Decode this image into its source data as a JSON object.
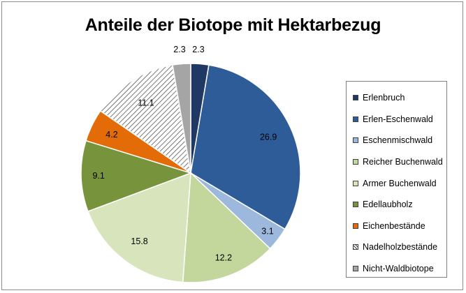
{
  "chart_data": {
    "type": "pie",
    "title": "Anteile der Biotope mit Hektarbezug",
    "legend_position": "right",
    "slices": [
      {
        "name": "Erlenbruch",
        "value": 2.3,
        "label": "2.3",
        "color": "#1f3864",
        "pattern": "solid"
      },
      {
        "name": "Erlen-Eschenwald",
        "value": 26.9,
        "label": "26.9",
        "color": "#2e5c99",
        "pattern": "solid"
      },
      {
        "name": "Eschenmischwald",
        "value": 3.1,
        "label": "3.1",
        "color": "#9db8dd",
        "pattern": "solid"
      },
      {
        "name": "Reicher Buchenwald",
        "value": 12.2,
        "label": "12.2",
        "color": "#c3d69b",
        "pattern": "solid"
      },
      {
        "name": "Armer Buchenwald",
        "value": 15.8,
        "label": "15.8",
        "color": "#d8e4bc",
        "pattern": "solid"
      },
      {
        "name": "Edellaubholz",
        "value": 9.1,
        "label": "9.1",
        "color": "#77933c",
        "pattern": "solid"
      },
      {
        "name": "Eichenbestände",
        "value": 4.2,
        "label": "4.2",
        "color": "#e36c09",
        "pattern": "solid"
      },
      {
        "name": "Nadelholzbestände",
        "value": 11.1,
        "label": "11.1",
        "color": "#ffffff",
        "pattern": "hatch"
      },
      {
        "name": "Nicht-Waldbiotope",
        "value": 2.3,
        "label": "2.3",
        "color": "#a5a5a5",
        "pattern": "solid"
      }
    ]
  }
}
